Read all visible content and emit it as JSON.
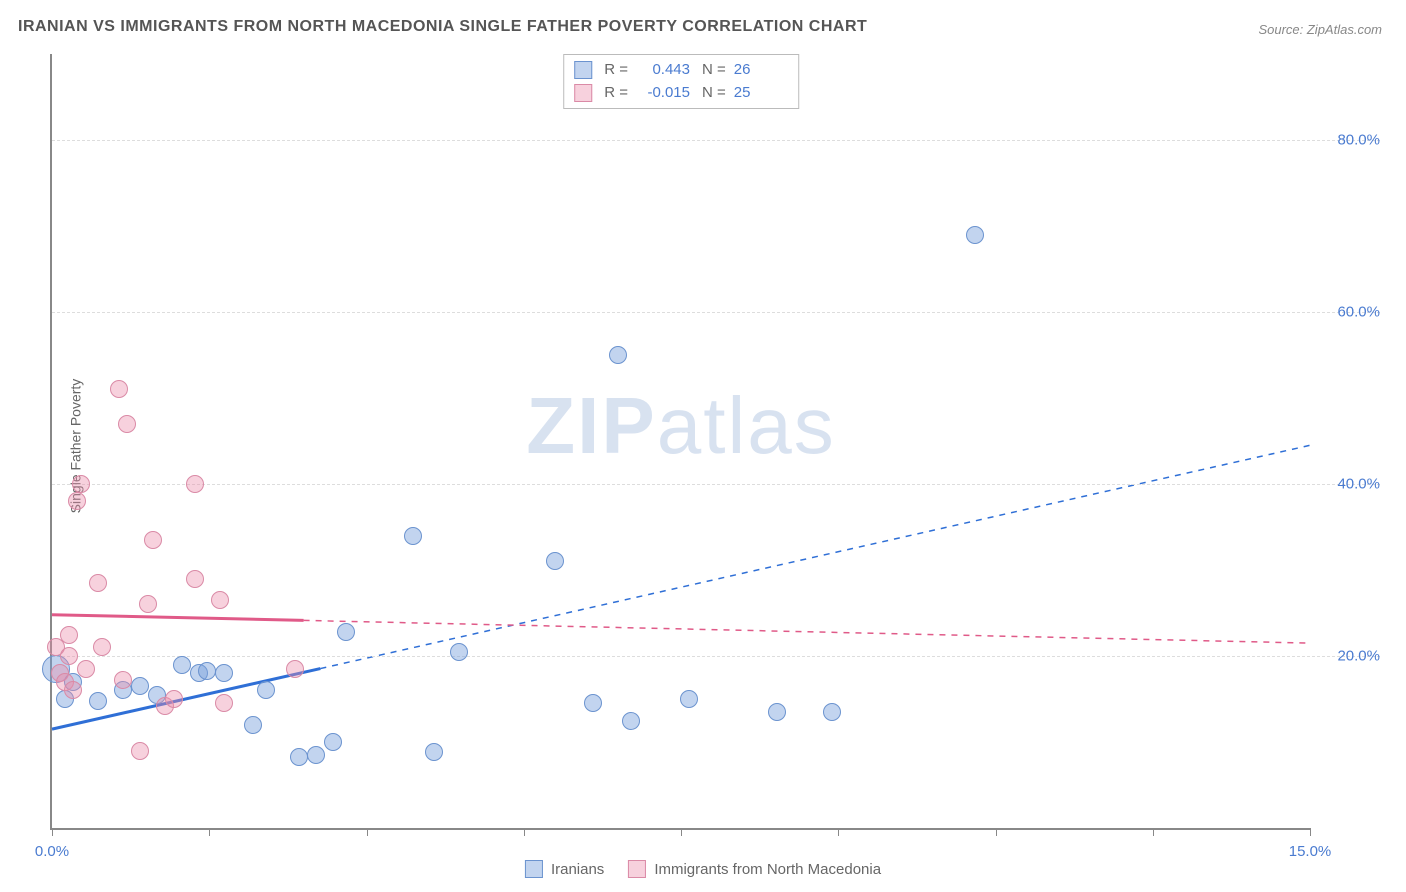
{
  "title": "IRANIAN VS IMMIGRANTS FROM NORTH MACEDONIA SINGLE FATHER POVERTY CORRELATION CHART",
  "source": "Source: ZipAtlas.com",
  "ylabel": "Single Father Poverty",
  "watermark_a": "ZIP",
  "watermark_b": "atlas",
  "xlim": [
    0,
    15
  ],
  "ylim": [
    0,
    90
  ],
  "xticks": [
    0,
    1.875,
    3.75,
    5.625,
    7.5,
    9.375,
    11.25,
    13.125,
    15
  ],
  "x_first_label": "0.0%",
  "x_last_label": "15.0%",
  "x_label_color": "#4a7bd0",
  "yticks": [
    {
      "v": 20,
      "label": "20.0%",
      "color": "#4a7bd0"
    },
    {
      "v": 40,
      "label": "40.0%",
      "color": "#4a7bd0"
    },
    {
      "v": 60,
      "label": "60.0%",
      "color": "#4a7bd0"
    },
    {
      "v": 80,
      "label": "80.0%",
      "color": "#4a7bd0"
    }
  ],
  "grid_color": "#dddddd",
  "series": [
    {
      "name": "Iranians",
      "fill": "rgba(120,160,220,0.45)",
      "stroke": "#6b93cf",
      "trend_color": "#2f6fd6",
      "trend_width": 3,
      "R": "0.443",
      "N": "26",
      "regression": {
        "x1": 0,
        "y1": 11.5,
        "x2": 15,
        "y2": 44.5
      },
      "solid_until_x": 3.2,
      "marker_size": 18,
      "points": [
        {
          "x": 0.05,
          "y": 18.5,
          "size": 28
        },
        {
          "x": 0.15,
          "y": 15.0
        },
        {
          "x": 0.25,
          "y": 17.0
        },
        {
          "x": 0.55,
          "y": 14.8
        },
        {
          "x": 0.85,
          "y": 16.0
        },
        {
          "x": 1.05,
          "y": 16.5
        },
        {
          "x": 1.25,
          "y": 15.5
        },
        {
          "x": 1.55,
          "y": 19.0
        },
        {
          "x": 1.75,
          "y": 18.0
        },
        {
          "x": 1.85,
          "y": 18.3
        },
        {
          "x": 2.05,
          "y": 18.0
        },
        {
          "x": 2.4,
          "y": 12.0
        },
        {
          "x": 2.55,
          "y": 16.0
        },
        {
          "x": 2.95,
          "y": 8.3
        },
        {
          "x": 3.15,
          "y": 8.5
        },
        {
          "x": 3.35,
          "y": 10.0
        },
        {
          "x": 3.5,
          "y": 22.8
        },
        {
          "x": 4.3,
          "y": 34.0
        },
        {
          "x": 4.55,
          "y": 8.8
        },
        {
          "x": 4.85,
          "y": 20.5
        },
        {
          "x": 6.0,
          "y": 31.0
        },
        {
          "x": 6.45,
          "y": 14.5
        },
        {
          "x": 6.75,
          "y": 55.0
        },
        {
          "x": 6.9,
          "y": 12.5
        },
        {
          "x": 7.6,
          "y": 15.0
        },
        {
          "x": 8.65,
          "y": 13.5
        },
        {
          "x": 9.3,
          "y": 13.5
        },
        {
          "x": 11.0,
          "y": 69.0
        }
      ]
    },
    {
      "name": "Immigrants from North Macedonia",
      "fill": "rgba(235,140,170,0.4)",
      "stroke": "#da8aa6",
      "trend_color": "#e05a88",
      "trend_width": 3,
      "R": "-0.015",
      "N": "25",
      "regression": {
        "x1": 0,
        "y1": 24.8,
        "x2": 15,
        "y2": 21.5
      },
      "solid_until_x": 3.0,
      "marker_size": 18,
      "points": [
        {
          "x": 0.05,
          "y": 21.0
        },
        {
          "x": 0.1,
          "y": 18.0
        },
        {
          "x": 0.15,
          "y": 17.0
        },
        {
          "x": 0.2,
          "y": 20.0
        },
        {
          "x": 0.2,
          "y": 22.5
        },
        {
          "x": 0.25,
          "y": 16.0
        },
        {
          "x": 0.3,
          "y": 38.0
        },
        {
          "x": 0.35,
          "y": 40.0
        },
        {
          "x": 0.4,
          "y": 18.5
        },
        {
          "x": 0.55,
          "y": 28.5
        },
        {
          "x": 0.6,
          "y": 21.0
        },
        {
          "x": 0.8,
          "y": 51.0
        },
        {
          "x": 0.85,
          "y": 17.2
        },
        {
          "x": 0.9,
          "y": 47.0
        },
        {
          "x": 1.05,
          "y": 9.0
        },
        {
          "x": 1.15,
          "y": 26.0
        },
        {
          "x": 1.2,
          "y": 33.5
        },
        {
          "x": 1.35,
          "y": 14.2
        },
        {
          "x": 1.45,
          "y": 15.0
        },
        {
          "x": 1.7,
          "y": 29.0
        },
        {
          "x": 1.7,
          "y": 40.0
        },
        {
          "x": 2.0,
          "y": 26.5
        },
        {
          "x": 2.05,
          "y": 14.5
        },
        {
          "x": 2.9,
          "y": 18.5
        }
      ]
    }
  ],
  "legend_top_label_R": "R =",
  "legend_top_label_N": "N =",
  "legend_bottom": [
    {
      "label": "Iranians",
      "fill": "rgba(120,160,220,0.45)",
      "stroke": "#6b93cf"
    },
    {
      "label": "Immigrants from North Macedonia",
      "fill": "rgba(235,140,170,0.4)",
      "stroke": "#da8aa6"
    }
  ]
}
